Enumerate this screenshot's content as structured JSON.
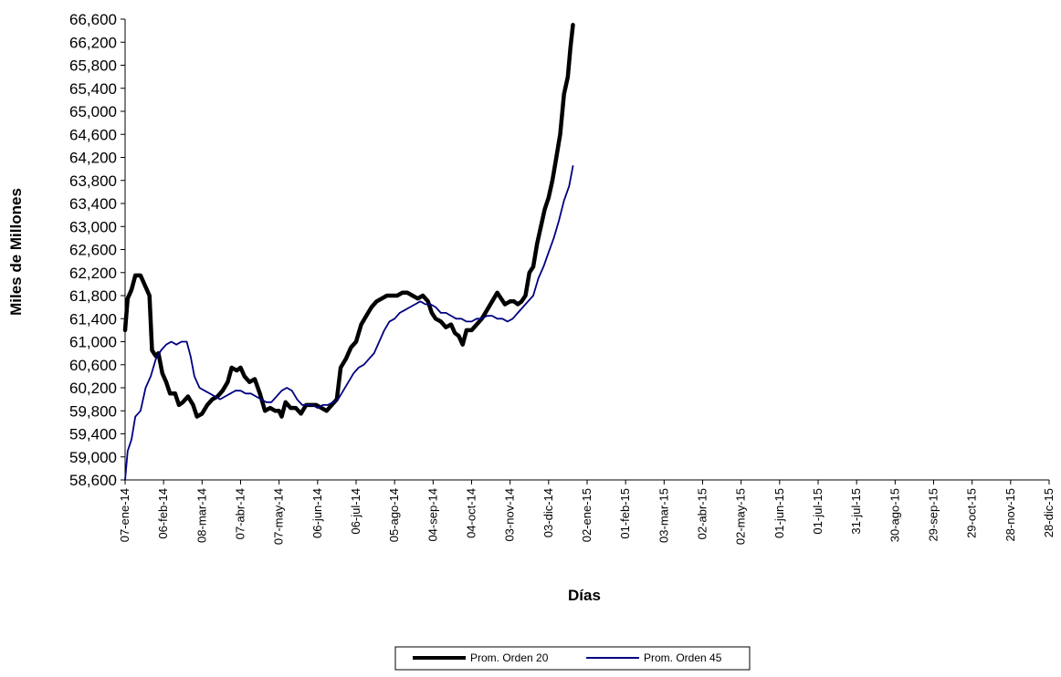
{
  "chart_data": {
    "type": "line",
    "xlabel": "Días",
    "ylabel": "Miles de Millones",
    "ylim": [
      58600,
      66600
    ],
    "y_ticks": [
      "58,600",
      "59,000",
      "59,400",
      "59,800",
      "60,200",
      "60,600",
      "61,000",
      "61,400",
      "61,800",
      "62,200",
      "62,600",
      "63,000",
      "63,400",
      "63,800",
      "64,200",
      "64,600",
      "65,000",
      "65,400",
      "65,800",
      "66,200",
      "66,600"
    ],
    "x_ticks": [
      "07-ene-14",
      "06-feb-14",
      "08-mar-14",
      "07-abr-14",
      "07-may-14",
      "06-jun-14",
      "06-jul-14",
      "05-ago-14",
      "04-sep-14",
      "04-oct-14",
      "03-nov-14",
      "03-dic-14",
      "02-ene-15",
      "01-feb-15",
      "03-mar-15",
      "02-abr-15",
      "02-may-15",
      "01-jun-15",
      "01-jul-15",
      "31-jul-15",
      "30-ago-15",
      "29-sep-15",
      "29-oct-15",
      "28-nov-15",
      "28-dic-15"
    ],
    "grid": false,
    "legend_position": "bottom",
    "series": [
      {
        "name": "Prom. Orden 20",
        "color": "#000000",
        "points": [
          [
            "07-ene-14",
            61200
          ],
          [
            "09-ene-14",
            61750
          ],
          [
            "12-ene-14",
            61900
          ],
          [
            "15-ene-14",
            62150
          ],
          [
            "19-ene-14",
            62150
          ],
          [
            "23-ene-14",
            61950
          ],
          [
            "26-ene-14",
            61800
          ],
          [
            "28-ene-14",
            60850
          ],
          [
            "31-ene-14",
            60750
          ],
          [
            "02-feb-14",
            60800
          ],
          [
            "05-feb-14",
            60450
          ],
          [
            "08-feb-14",
            60300
          ],
          [
            "11-feb-14",
            60100
          ],
          [
            "15-feb-14",
            60100
          ],
          [
            "18-feb-14",
            59900
          ],
          [
            "21-feb-14",
            59950
          ],
          [
            "25-feb-14",
            60050
          ],
          [
            "01-mar-14",
            59900
          ],
          [
            "04-mar-14",
            59700
          ],
          [
            "08-mar-14",
            59750
          ],
          [
            "12-mar-14",
            59900
          ],
          [
            "16-mar-14",
            60000
          ],
          [
            "20-mar-14",
            60050
          ],
          [
            "24-mar-14",
            60150
          ],
          [
            "28-mar-14",
            60300
          ],
          [
            "31-mar-14",
            60550
          ],
          [
            "04-abr-14",
            60500
          ],
          [
            "07-abr-14",
            60550
          ],
          [
            "10-abr-14",
            60400
          ],
          [
            "14-abr-14",
            60300
          ],
          [
            "18-abr-14",
            60350
          ],
          [
            "22-abr-14",
            60100
          ],
          [
            "26-abr-14",
            59800
          ],
          [
            "30-abr-14",
            59850
          ],
          [
            "04-may-14",
            59800
          ],
          [
            "07-may-14",
            59800
          ],
          [
            "09-may-14",
            59700
          ],
          [
            "12-may-14",
            59950
          ],
          [
            "16-may-14",
            59850
          ],
          [
            "20-may-14",
            59850
          ],
          [
            "24-may-14",
            59750
          ],
          [
            "28-may-14",
            59900
          ],
          [
            "01-jun-14",
            59900
          ],
          [
            "05-jun-14",
            59900
          ],
          [
            "09-jun-14",
            59850
          ],
          [
            "13-jun-14",
            59800
          ],
          [
            "17-jun-14",
            59900
          ],
          [
            "21-jun-14",
            60000
          ],
          [
            "24-jun-14",
            60550
          ],
          [
            "28-jun-14",
            60700
          ],
          [
            "02-jul-14",
            60900
          ],
          [
            "06-jul-14",
            61000
          ],
          [
            "10-jul-14",
            61300
          ],
          [
            "14-jul-14",
            61450
          ],
          [
            "18-jul-14",
            61600
          ],
          [
            "22-jul-14",
            61700
          ],
          [
            "26-jul-14",
            61750
          ],
          [
            "30-jul-14",
            61800
          ],
          [
            "03-ago-14",
            61800
          ],
          [
            "07-ago-14",
            61800
          ],
          [
            "11-ago-14",
            61850
          ],
          [
            "15-ago-14",
            61850
          ],
          [
            "19-ago-14",
            61800
          ],
          [
            "23-ago-14",
            61750
          ],
          [
            "27-ago-14",
            61800
          ],
          [
            "31-ago-14",
            61700
          ],
          [
            "03-sep-14",
            61500
          ],
          [
            "06-sep-14",
            61400
          ],
          [
            "10-sep-14",
            61350
          ],
          [
            "14-sep-14",
            61250
          ],
          [
            "18-sep-14",
            61300
          ],
          [
            "21-sep-14",
            61150
          ],
          [
            "24-sep-14",
            61100
          ],
          [
            "27-sep-14",
            60950
          ],
          [
            "30-sep-14",
            61200
          ],
          [
            "04-oct-14",
            61200
          ],
          [
            "08-oct-14",
            61300
          ],
          [
            "12-oct-14",
            61400
          ],
          [
            "16-oct-14",
            61550
          ],
          [
            "20-oct-14",
            61700
          ],
          [
            "24-oct-14",
            61850
          ],
          [
            "27-oct-14",
            61750
          ],
          [
            "30-oct-14",
            61650
          ],
          [
            "03-nov-14",
            61700
          ],
          [
            "06-nov-14",
            61700
          ],
          [
            "09-nov-14",
            61650
          ],
          [
            "12-nov-14",
            61700
          ],
          [
            "15-nov-14",
            61800
          ],
          [
            "18-nov-14",
            62200
          ],
          [
            "21-nov-14",
            62300
          ],
          [
            "24-nov-14",
            62700
          ],
          [
            "27-nov-14",
            63000
          ],
          [
            "30-nov-14",
            63300
          ],
          [
            "03-dic-14",
            63500
          ],
          [
            "06-dic-14",
            63800
          ],
          [
            "09-dic-14",
            64200
          ],
          [
            "12-dic-14",
            64600
          ],
          [
            "15-dic-14",
            65300
          ],
          [
            "18-dic-14",
            65600
          ],
          [
            "20-dic-14",
            66100
          ],
          [
            "22-dic-14",
            66500
          ]
        ]
      },
      {
        "name": "Prom. Orden 45",
        "color": "#000080",
        "points": [
          [
            "07-ene-14",
            58600
          ],
          [
            "09-ene-14",
            59100
          ],
          [
            "12-ene-14",
            59300
          ],
          [
            "15-ene-14",
            59700
          ],
          [
            "19-ene-14",
            59800
          ],
          [
            "23-ene-14",
            60200
          ],
          [
            "27-ene-14",
            60400
          ],
          [
            "31-ene-14",
            60700
          ],
          [
            "04-feb-14",
            60850
          ],
          [
            "08-feb-14",
            60950
          ],
          [
            "12-feb-14",
            61000
          ],
          [
            "16-feb-14",
            60950
          ],
          [
            "20-feb-14",
            61000
          ],
          [
            "24-feb-14",
            61000
          ],
          [
            "27-feb-14",
            60750
          ],
          [
            "02-mar-14",
            60400
          ],
          [
            "06-mar-14",
            60200
          ],
          [
            "10-mar-14",
            60150
          ],
          [
            "14-mar-14",
            60100
          ],
          [
            "18-mar-14",
            60050
          ],
          [
            "22-mar-14",
            60000
          ],
          [
            "26-mar-14",
            60050
          ],
          [
            "30-mar-14",
            60100
          ],
          [
            "03-abr-14",
            60150
          ],
          [
            "07-abr-14",
            60150
          ],
          [
            "11-abr-14",
            60100
          ],
          [
            "15-abr-14",
            60100
          ],
          [
            "19-abr-14",
            60050
          ],
          [
            "23-abr-14",
            60000
          ],
          [
            "27-abr-14",
            59950
          ],
          [
            "01-may-14",
            59950
          ],
          [
            "05-may-14",
            60050
          ],
          [
            "09-may-14",
            60150
          ],
          [
            "13-may-14",
            60200
          ],
          [
            "17-may-14",
            60150
          ],
          [
            "21-may-14",
            60000
          ],
          [
            "25-may-14",
            59900
          ],
          [
            "29-may-14",
            59900
          ],
          [
            "02-jun-14",
            59900
          ],
          [
            "06-jun-14",
            59850
          ],
          [
            "10-jun-14",
            59900
          ],
          [
            "14-jun-14",
            59900
          ],
          [
            "18-jun-14",
            59950
          ],
          [
            "22-jun-14",
            60000
          ],
          [
            "26-jun-14",
            60150
          ],
          [
            "30-jun-14",
            60300
          ],
          [
            "04-jul-14",
            60450
          ],
          [
            "08-jul-14",
            60550
          ],
          [
            "12-jul-14",
            60600
          ],
          [
            "16-jul-14",
            60700
          ],
          [
            "20-jul-14",
            60800
          ],
          [
            "24-jul-14",
            61000
          ],
          [
            "28-jul-14",
            61200
          ],
          [
            "01-ago-14",
            61350
          ],
          [
            "05-ago-14",
            61400
          ],
          [
            "09-ago-14",
            61500
          ],
          [
            "13-ago-14",
            61550
          ],
          [
            "17-ago-14",
            61600
          ],
          [
            "21-ago-14",
            61650
          ],
          [
            "25-ago-14",
            61700
          ],
          [
            "29-ago-14",
            61650
          ],
          [
            "02-sep-14",
            61650
          ],
          [
            "06-sep-14",
            61600
          ],
          [
            "10-sep-14",
            61500
          ],
          [
            "14-sep-14",
            61500
          ],
          [
            "18-sep-14",
            61450
          ],
          [
            "22-sep-14",
            61400
          ],
          [
            "26-sep-14",
            61400
          ],
          [
            "30-sep-14",
            61350
          ],
          [
            "04-oct-14",
            61350
          ],
          [
            "08-oct-14",
            61400
          ],
          [
            "12-oct-14",
            61400
          ],
          [
            "16-oct-14",
            61450
          ],
          [
            "20-oct-14",
            61450
          ],
          [
            "24-oct-14",
            61400
          ],
          [
            "28-oct-14",
            61400
          ],
          [
            "01-nov-14",
            61350
          ],
          [
            "05-nov-14",
            61400
          ],
          [
            "09-nov-14",
            61500
          ],
          [
            "13-nov-14",
            61600
          ],
          [
            "17-nov-14",
            61700
          ],
          [
            "21-nov-14",
            61800
          ],
          [
            "25-nov-14",
            62100
          ],
          [
            "29-nov-14",
            62300
          ],
          [
            "03-dic-14",
            62550
          ],
          [
            "07-dic-14",
            62800
          ],
          [
            "11-dic-14",
            63100
          ],
          [
            "15-dic-14",
            63450
          ],
          [
            "19-dic-14",
            63700
          ],
          [
            "22-dic-14",
            64050
          ]
        ]
      }
    ]
  }
}
